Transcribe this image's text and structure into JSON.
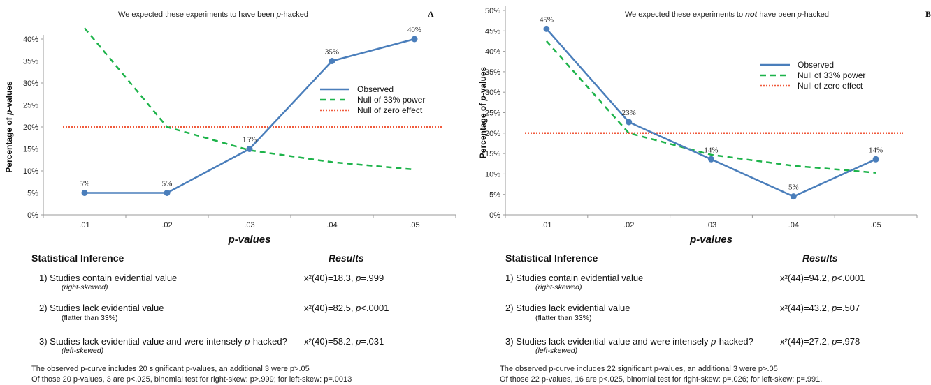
{
  "chart_data": [
    {
      "type": "line",
      "panel_letter": "A",
      "title_parts": [
        "We expected these experiments to have been ",
        "p",
        "-hacked"
      ],
      "xlabel": "p-values",
      "ylabel": "Percentage of p-values",
      "categories": [
        ".01",
        ".02",
        ".03",
        ".04",
        ".05"
      ],
      "ylim": [
        0,
        40
      ],
      "yticks": [
        "0%",
        "5%",
        "10%",
        "15%",
        "20%",
        "25%",
        "30%",
        "35%",
        "40%"
      ],
      "series": [
        {
          "name": "Observed",
          "values": [
            5,
            5,
            15,
            35,
            40
          ],
          "labels": [
            "5%",
            "5%",
            "15%",
            "35%",
            "40%"
          ],
          "color": "#4a7ebb",
          "style": "solid",
          "markers": true
        },
        {
          "name": "Null of 33% power",
          "values": [
            42.5,
            20,
            14.7,
            12,
            10.3
          ],
          "color": "#1db34a",
          "style": "dashed"
        },
        {
          "name": "Null of zero effect",
          "values": [
            20,
            20,
            20,
            20,
            20
          ],
          "color": "#f05a3c",
          "style": "dotted"
        }
      ],
      "legend": "right"
    },
    {
      "type": "line",
      "panel_letter": "B",
      "title_parts": [
        "We expected these experiments to ",
        "not",
        " have been ",
        "p",
        "-hacked"
      ],
      "xlabel": "p-values",
      "ylabel": "Percentage of p-values",
      "categories": [
        ".01",
        ".02",
        ".03",
        ".04",
        ".05"
      ],
      "ylim": [
        0,
        50
      ],
      "yticks": [
        "0%",
        "5%",
        "10%",
        "15%",
        "20%",
        "25%",
        "30%",
        "35%",
        "40%",
        "45%",
        "50%"
      ],
      "series": [
        {
          "name": "Observed",
          "values": [
            45.5,
            22.7,
            13.6,
            4.5,
            13.6
          ],
          "labels": [
            "45%",
            "23%",
            "14%",
            "5%",
            "14%"
          ],
          "color": "#4a7ebb",
          "style": "solid",
          "markers": true
        },
        {
          "name": "Null of 33% power",
          "values": [
            42.5,
            20,
            14.7,
            12,
            10.3
          ],
          "color": "#1db34a",
          "style": "dashed"
        },
        {
          "name": "Null of zero effect",
          "values": [
            20,
            20,
            20,
            20,
            20
          ],
          "color": "#f05a3c",
          "style": "dotted"
        }
      ],
      "legend": "top-right"
    }
  ],
  "inference": [
    {
      "heading": "Statistical Inference",
      "results_heading": "Results",
      "rows": [
        {
          "label": "1) Studies contain evidential value",
          "sub": "(right-skewed)",
          "result": "x²(40)=18.3, p=.999"
        },
        {
          "label": "2) Studies lack evidential value",
          "sub": "(flatter than 33%)",
          "result": "x²(40)=82.5, p<.0001"
        },
        {
          "label": "3) Studies lack evidential value and were intensely p-hacked?",
          "sub": "(left-skewed)",
          "result": "x²(40)=58.2, p=.031"
        }
      ],
      "footer": [
        "The observed p-curve includes 20 significant p-values, an additional 3 were p>.05",
        "Of those 20 p-values, 3 are p<.025, binomial test for right-skew: p>.999; for left-skew: p=.0013"
      ]
    },
    {
      "heading": "Statistical Inference",
      "results_heading": "Results",
      "rows": [
        {
          "label": "1) Studies contain evidential value",
          "sub": "(right-skewed)",
          "result": "x²(44)=94.2, p<.0001"
        },
        {
          "label": "2) Studies lack evidential value",
          "sub": "(flatter than 33%)",
          "result": "x²(44)=43.2, p=.507"
        },
        {
          "label": "3) Studies lack evidential value and were intensely p-hacked?",
          "sub": "(left-skewed)",
          "result": "x²(44)=27.2, p=.978"
        }
      ],
      "footer": [
        "The observed p-curve includes 22 significant p-values, an additional 3 were p>.05",
        "Of those 22 p-values, 16 are p<.025, binomial test for right-skew: p=.026; for left-skew: p=.991."
      ]
    }
  ]
}
